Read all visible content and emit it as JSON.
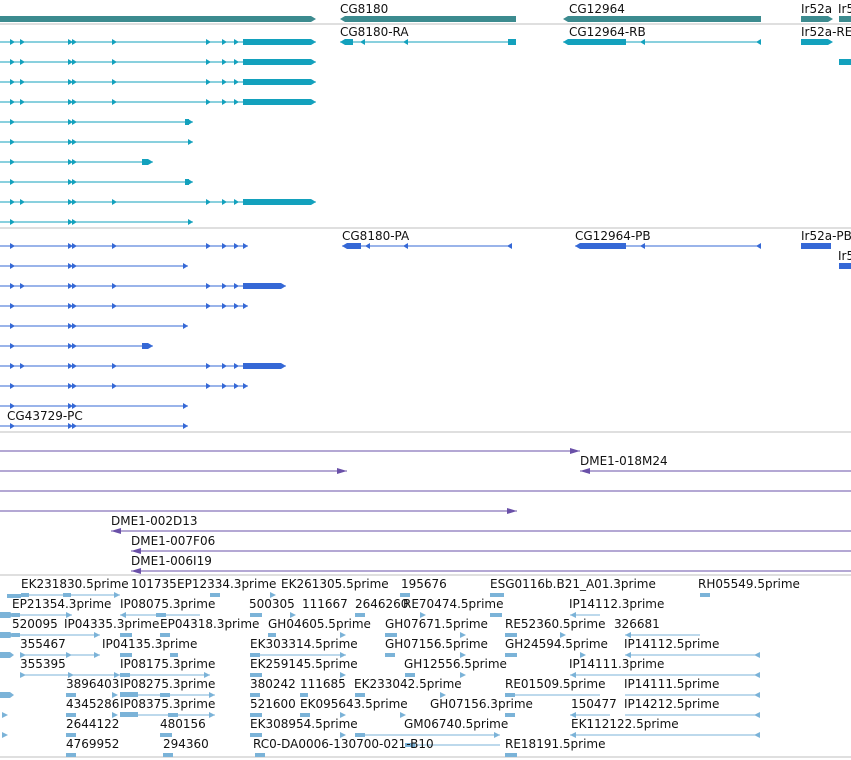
{
  "colors": {
    "gene": "#3c8b8f",
    "mrna": "#13a1bd",
    "cds": "#3568d6",
    "clone": "#6a50a8",
    "est": "#7bb3d8",
    "divider": "#bfbfbf"
  },
  "genes": {
    "labels": [
      "CG8180",
      "CG12964",
      "Ir52a",
      "Ir5"
    ]
  },
  "transcripts": {
    "labels": [
      "CG8180-RA",
      "CG12964-RB",
      "Ir52a-RE"
    ]
  },
  "cds": {
    "labels": [
      "CG8180-PA",
      "CG12964-PB",
      "Ir52a-PB",
      "Ir5",
      "CG43729-PC"
    ]
  },
  "clones": {
    "labels": [
      "DME1-018M24",
      "DME1-002D13",
      "DME1-007F06",
      "DME1-006I19"
    ]
  },
  "ests": {
    "labels": [
      "EK231830.5prime",
      "101735",
      "EP12334.3prime",
      "EK261305.5prime",
      "195676",
      "ESG0116b.B21_A01.3prime",
      "RH05549.5prime",
      "EP21354.3prime",
      "IP08075.3prime",
      "500305",
      "111667",
      "2646260",
      "RE70474.5prime",
      "IP14112.3prime",
      "520095",
      "IP04335.3prime",
      "EP04318.3prime",
      "GH04605.5prime",
      "GH07671.5prime",
      "RE52360.5prime",
      "326681",
      "355467",
      "IP04135.3prime",
      "EK303314.5prime",
      "GH07156.5prime",
      "GH24594.5prime",
      "IP14112.5prime",
      "355395",
      "IP08175.3prime",
      "EK259145.5prime",
      "GH12556.5prime",
      "IP14111.3prime",
      "3896403",
      "IP08275.3prime",
      "380242",
      "111685",
      "EK233042.5prime",
      "RE01509.5prime",
      "IP14111.5prime",
      "4345286",
      "IP08375.3prime",
      "521600",
      "EK095643.5prime",
      "GH07156.3prime",
      "150477",
      "IP14212.5prime",
      "2644122",
      "480156",
      "EK308954.5prime",
      "GM06740.5prime",
      "EK112122.5prime",
      "4769952",
      "294360",
      "RC0-DA0006-130700-021-B10",
      "RE18191.5prime"
    ]
  }
}
